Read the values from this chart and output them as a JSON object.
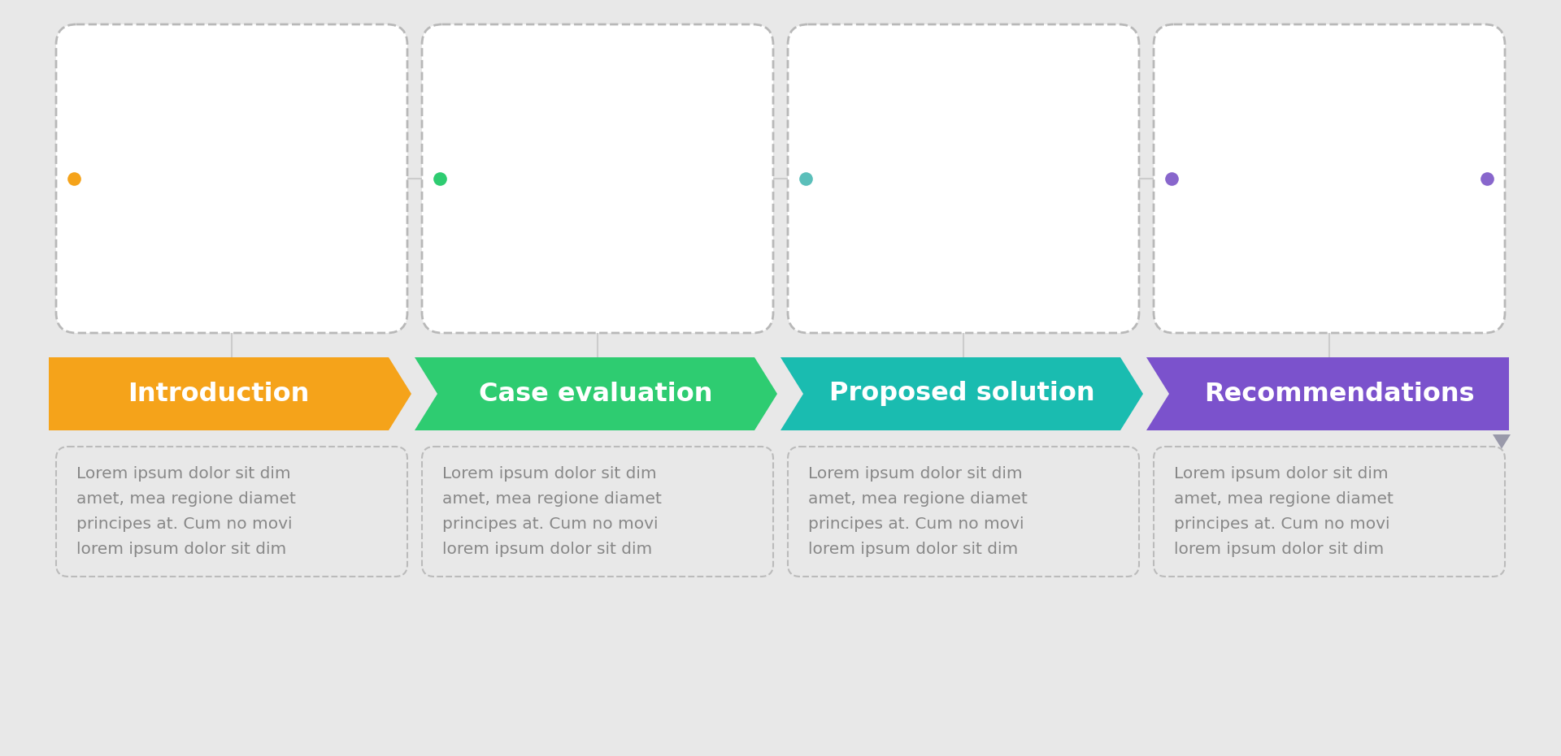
{
  "background_color": "#e8e8e8",
  "steps": [
    {
      "title": "Introduction",
      "color": "#F5A31A",
      "color_dark": "#E8920A",
      "dot_color": "#F5A31A",
      "text": "Lorem ipsum dolor sit dim\namet, mea regione diamet\nprincipes at. Cum no movi\nlorem ipsum dolor sit dim"
    },
    {
      "title": "Case evaluation",
      "color": "#2ECC71",
      "color_dark": "#1DB85C",
      "dot_color": "#2ECC71",
      "text": "Lorem ipsum dolor sit dim\namet, mea regione diamet\nprincipes at. Cum no movi\nlorem ipsum dolor sit dim"
    },
    {
      "title": "Proposed solution",
      "color": "#1ABCB0",
      "color_dark": "#0FA89D",
      "dot_color": "#5BBFBA",
      "text": "Lorem ipsum dolor sit dim\namet, mea regione diamet\nprincipes at. Cum no movi\nlorem ipsum dolor sit dim"
    },
    {
      "title": "Recommendations",
      "color": "#7B52CC",
      "color_dark": "#6840B8",
      "dot_color": "#8866CC",
      "text": "Lorem ipsum dolor sit dim\namet, mea regione diamet\nprincipes at. Cum no movi\nlorem ipsum dolor sit dim"
    }
  ],
  "card_bg": "#f5f5f5",
  "card_border_color": "#b0b0b0",
  "text_color": "#888888",
  "arrow_text_color": "#ffffff",
  "figsize": [
    19.2,
    9.31
  ],
  "dpi": 100
}
